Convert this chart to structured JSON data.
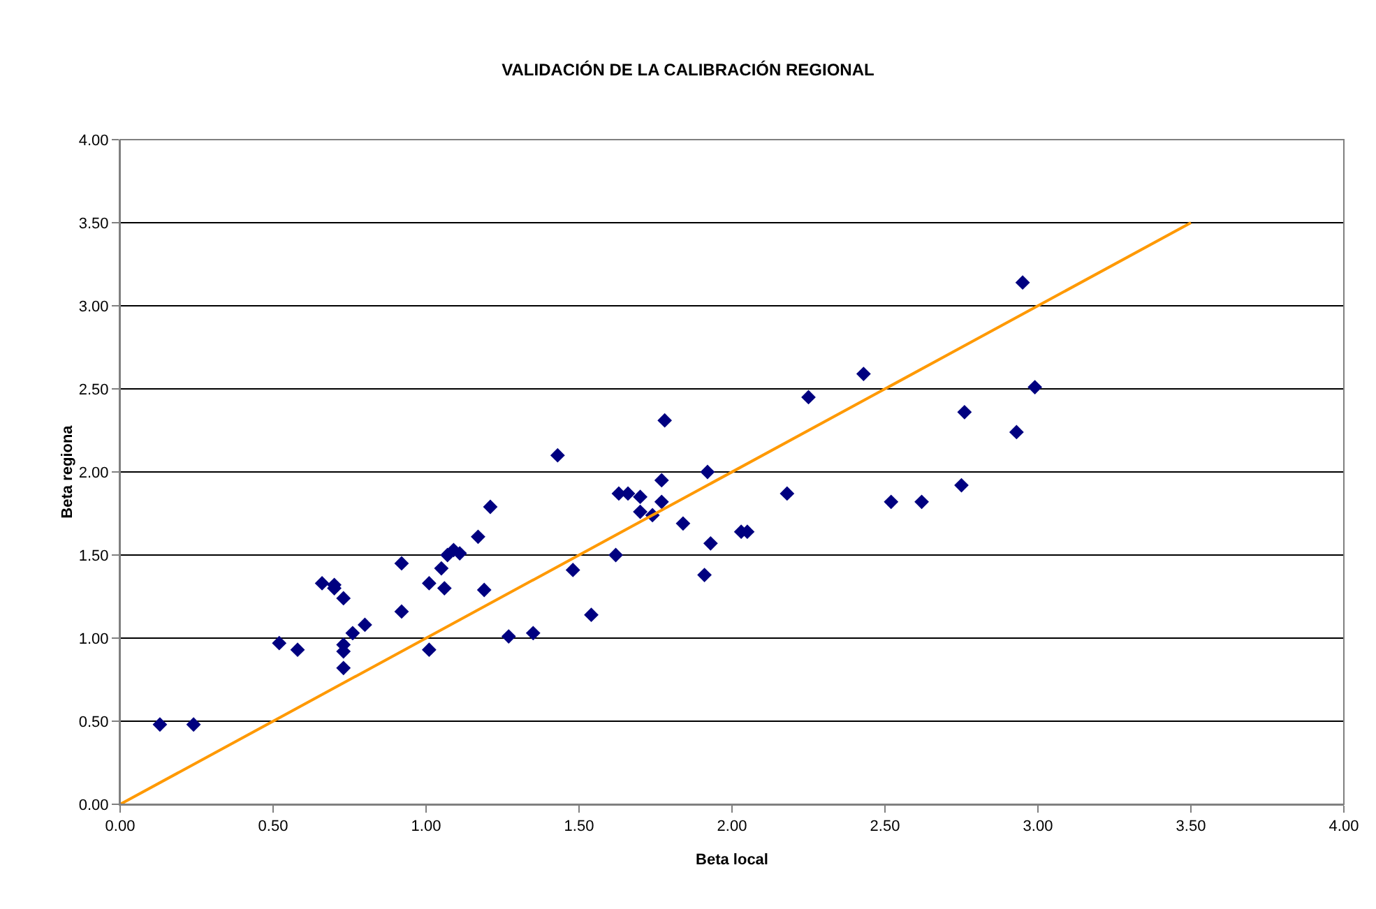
{
  "chart_data": {
    "type": "scatter",
    "title": "VALIDACIÓN DE LA CALIBRACIÓN REGIONAL",
    "xlabel": "Beta local",
    "ylabel": "Beta regiona",
    "xlim": [
      0,
      4
    ],
    "ylim": [
      0,
      4
    ],
    "xticks": [
      {
        "value": 0,
        "label": "0.00"
      },
      {
        "value": 0.5,
        "label": "0.50"
      },
      {
        "value": 1,
        "label": "1.00"
      },
      {
        "value": 1.5,
        "label": "1.50"
      },
      {
        "value": 2,
        "label": "2.00"
      },
      {
        "value": 2.5,
        "label": "2.50"
      },
      {
        "value": 3,
        "label": "3.00"
      },
      {
        "value": 3.5,
        "label": "3.50"
      },
      {
        "value": 4,
        "label": "4.00"
      }
    ],
    "yticks": [
      {
        "value": 0,
        "label": "0.00"
      },
      {
        "value": 0.5,
        "label": "0.50"
      },
      {
        "value": 1,
        "label": "1.00"
      },
      {
        "value": 1.5,
        "label": "1.50"
      },
      {
        "value": 2,
        "label": "2.00"
      },
      {
        "value": 2.5,
        "label": "2.50"
      },
      {
        "value": 3,
        "label": "3.00"
      },
      {
        "value": 3.5,
        "label": "3.50"
      },
      {
        "value": 4,
        "label": "4.00"
      }
    ],
    "grid": "y",
    "legend": false,
    "series": [
      {
        "type": "scatter",
        "marker": "diamond",
        "color": "#000080",
        "x": [
          0.13,
          0.24,
          0.52,
          0.58,
          0.66,
          0.7,
          0.7,
          0.73,
          0.73,
          0.73,
          0.73,
          0.76,
          0.8,
          0.92,
          0.92,
          1.01,
          1.01,
          1.05,
          1.06,
          1.07,
          1.09,
          1.11,
          1.17,
          1.19,
          1.21,
          1.27,
          1.35,
          1.43,
          1.48,
          1.54,
          1.62,
          1.63,
          1.66,
          1.7,
          1.7,
          1.74,
          1.77,
          1.77,
          1.78,
          1.84,
          1.92,
          1.93,
          1.91,
          2.03,
          2.05,
          2.18,
          2.25,
          2.43,
          2.52,
          2.62,
          2.75,
          2.76,
          2.93,
          2.95,
          2.99
        ],
        "values": [
          0.48,
          0.48,
          0.97,
          0.93,
          1.33,
          1.32,
          1.3,
          0.96,
          0.92,
          1.24,
          0.82,
          1.03,
          1.08,
          1.45,
          1.16,
          1.33,
          0.93,
          1.42,
          1.3,
          1.5,
          1.53,
          1.51,
          1.61,
          1.29,
          1.79,
          1.01,
          1.03,
          2.1,
          1.41,
          1.14,
          1.5,
          1.87,
          1.87,
          1.85,
          1.76,
          1.74,
          1.95,
          1.82,
          2.31,
          1.69,
          2.0,
          1.57,
          1.38,
          1.64,
          1.64,
          1.87,
          2.45,
          2.59,
          1.82,
          1.82,
          1.92,
          2.36,
          2.24,
          3.14,
          2.51
        ]
      },
      {
        "type": "line",
        "marker": "none",
        "color": "#ff9900",
        "x": [
          0,
          3.5
        ],
        "values": [
          0,
          3.5
        ]
      }
    ]
  }
}
